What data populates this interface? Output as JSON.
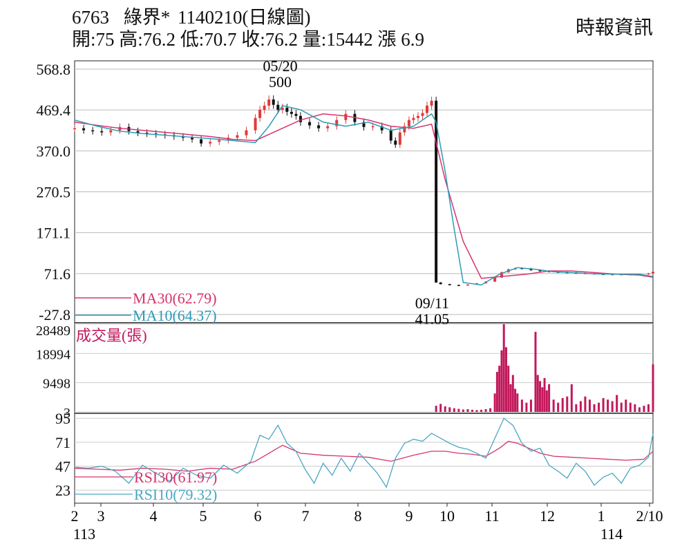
{
  "header": {
    "code": "6763",
    "name": "綠界*",
    "date": "1140210",
    "chart_kind": "(日線圖)",
    "quote": "開:75 高:76.2 低:70.7 收:76.2 量:15442 漲 6.9",
    "source": "時報資訊"
  },
  "chart_data": [
    {
      "type": "line",
      "panel": "price",
      "y_ticks": [
        "568.8",
        "469.4",
        "370.0",
        "270.5",
        "171.1",
        "71.6",
        "-27.8"
      ],
      "ylim": [
        -27.8,
        568.8
      ],
      "grid": true,
      "annotations": [
        {
          "label_top": "05/20",
          "label_bottom": "500",
          "x": 5.55,
          "y": 500
        },
        {
          "label_top": "09/11",
          "label_bottom": "41.05",
          "x": 9.05,
          "y": 41.05
        }
      ],
      "candles_x": [
        1.0,
        1.2,
        1.4,
        1.6,
        1.8,
        2.0,
        2.2,
        2.4,
        2.6,
        2.8,
        3.0,
        3.2,
        3.4,
        3.6,
        3.8,
        4.0,
        4.2,
        4.4,
        4.6,
        4.8,
        5.0,
        5.1,
        5.2,
        5.3,
        5.4,
        5.5,
        5.6,
        5.7,
        5.8,
        5.9,
        6.0,
        6.2,
        6.4,
        6.6,
        6.8,
        7.0,
        7.2,
        7.4,
        7.6,
        7.8,
        8.0,
        8.1,
        8.2,
        8.3,
        8.4,
        8.5,
        8.6,
        8.7,
        8.8,
        8.9,
        9.0,
        9.1,
        9.3,
        9.5,
        9.7,
        9.9,
        10.1,
        10.3,
        10.45,
        10.6,
        10.75,
        10.9,
        11.1,
        11.3,
        11.5,
        11.7,
        11.9,
        12.1,
        12.3,
        12.5,
        12.7,
        12.9,
        13.1,
        13.3,
        13.5,
        13.7,
        13.8
      ],
      "close": [
        425,
        420,
        418,
        415,
        420,
        428,
        418,
        414,
        412,
        410,
        408,
        405,
        402,
        398,
        388,
        392,
        396,
        402,
        408,
        420,
        450,
        470,
        480,
        495,
        482,
        470,
        475,
        465,
        460,
        455,
        440,
        432,
        425,
        430,
        445,
        460,
        440,
        428,
        430,
        420,
        395,
        385,
        415,
        430,
        445,
        450,
        455,
        462,
        480,
        492,
        50,
        46,
        44,
        43,
        45,
        48,
        52,
        62,
        75,
        82,
        85,
        84,
        80,
        78,
        76,
        75,
        74,
        73,
        72,
        71,
        70,
        70,
        70,
        70,
        70,
        72,
        76.2
      ],
      "series": [
        {
          "name": "MA30(62.79)",
          "color": "#d6336c",
          "x": [
            1.0,
            1.5,
            2.0,
            2.5,
            3.0,
            3.5,
            4.0,
            4.5,
            5.0,
            5.5,
            6.0,
            6.5,
            7.0,
            7.5,
            8.0,
            8.5,
            8.9,
            9.2,
            9.6,
            10.0,
            10.5,
            11.0,
            11.5,
            12.0,
            12.5,
            13.0,
            13.5,
            13.8
          ],
          "values": [
            440,
            432,
            425,
            420,
            415,
            410,
            405,
            398,
            395,
            420,
            445,
            460,
            455,
            445,
            430,
            425,
            435,
            300,
            150,
            60,
            65,
            70,
            78,
            78,
            74,
            70,
            68,
            62.79
          ]
        },
        {
          "name": "MA10(64.37)",
          "color": "#2b9bb5",
          "x": [
            1.0,
            1.5,
            2.0,
            2.5,
            3.0,
            3.5,
            4.0,
            4.5,
            5.0,
            5.3,
            5.6,
            6.0,
            6.5,
            7.0,
            7.5,
            8.0,
            8.5,
            8.9,
            9.0,
            9.2,
            9.4,
            9.6,
            10.0,
            10.4,
            10.8,
            11.2,
            11.6,
            12.0,
            12.5,
            13.0,
            13.5,
            13.8
          ],
          "values": [
            445,
            430,
            418,
            412,
            408,
            404,
            400,
            395,
            390,
            430,
            480,
            470,
            440,
            430,
            440,
            420,
            430,
            460,
            440,
            320,
            180,
            50,
            44,
            70,
            86,
            82,
            76,
            74,
            71,
            70,
            70,
            64.37
          ]
        }
      ]
    },
    {
      "type": "bar",
      "panel": "volume",
      "label": "成交量(張)",
      "y_ticks": [
        "28489",
        "18994",
        "9498",
        "3"
      ],
      "ylim": [
        3,
        28489
      ],
      "x": [
        9.0,
        9.1,
        9.2,
        9.3,
        9.4,
        9.5,
        9.6,
        9.7,
        9.8,
        9.9,
        10.0,
        10.1,
        10.2,
        10.3,
        10.35,
        10.4,
        10.45,
        10.5,
        10.55,
        10.6,
        10.65,
        10.7,
        10.75,
        10.8,
        10.9,
        11.0,
        11.1,
        11.2,
        11.25,
        11.3,
        11.35,
        11.4,
        11.45,
        11.5,
        11.6,
        11.7,
        11.8,
        11.9,
        12.0,
        12.1,
        12.2,
        12.3,
        12.4,
        12.5,
        12.6,
        12.7,
        12.8,
        12.9,
        13.0,
        13.1,
        13.2,
        13.3,
        13.4,
        13.5,
        13.6,
        13.7,
        13.8
      ],
      "values": [
        2000,
        2600,
        1800,
        1500,
        1200,
        1000,
        800,
        900,
        700,
        600,
        700,
        900,
        1200,
        6000,
        13000,
        15000,
        20000,
        28489,
        21000,
        15000,
        9000,
        12000,
        7500,
        6000,
        4000,
        3000,
        4000,
        26000,
        12000,
        10000,
        8000,
        11000,
        7000,
        9000,
        4000,
        3000,
        4500,
        5000,
        9000,
        2500,
        3500,
        5000,
        4000,
        2500,
        3000,
        4500,
        4000,
        3500,
        5500,
        3000,
        4000,
        3000,
        2500,
        1500,
        2000,
        2500,
        15442
      ],
      "grid": true
    },
    {
      "type": "line",
      "panel": "rsi",
      "y_ticks": [
        "95",
        "71",
        "47",
        "23"
      ],
      "ylim": [
        10,
        100
      ],
      "series": [
        {
          "name": "RSI30(61.97)",
          "color": "#d6336c",
          "x": [
            1.0,
            1.5,
            2.0,
            2.5,
            3.0,
            3.5,
            4.0,
            4.5,
            5.0,
            5.3,
            5.6,
            6.0,
            6.5,
            7.0,
            7.5,
            8.0,
            8.5,
            8.9,
            9.2,
            9.5,
            9.8,
            10.1,
            10.4,
            10.6,
            10.8,
            11.0,
            11.3,
            11.6,
            12.0,
            12.4,
            12.8,
            13.2,
            13.6,
            13.8
          ],
          "values": [
            45,
            44,
            43,
            45,
            44,
            42,
            45,
            44,
            52,
            60,
            68,
            60,
            58,
            57,
            56,
            52,
            58,
            62,
            62,
            60,
            59,
            57,
            65,
            72,
            70,
            66,
            60,
            57,
            56,
            55,
            54,
            53,
            54,
            61.97
          ]
        },
        {
          "name": "RSI10(79.32)",
          "color": "#4aa6c2",
          "x": [
            1.0,
            1.3,
            1.6,
            1.9,
            2.2,
            2.5,
            2.8,
            3.1,
            3.4,
            3.7,
            4.0,
            4.3,
            4.6,
            4.9,
            5.1,
            5.3,
            5.5,
            5.7,
            5.9,
            6.1,
            6.3,
            6.5,
            6.7,
            6.9,
            7.1,
            7.3,
            7.5,
            7.7,
            7.9,
            8.1,
            8.3,
            8.5,
            8.7,
            8.9,
            9.1,
            9.3,
            9.5,
            9.7,
            9.9,
            10.1,
            10.3,
            10.5,
            10.7,
            10.9,
            11.1,
            11.3,
            11.5,
            11.7,
            11.9,
            12.1,
            12.3,
            12.5,
            12.7,
            12.9,
            13.1,
            13.3,
            13.5,
            13.7,
            13.8
          ],
          "values": [
            46,
            45,
            47,
            42,
            30,
            48,
            40,
            32,
            45,
            38,
            35,
            48,
            40,
            52,
            78,
            74,
            88,
            70,
            62,
            44,
            30,
            50,
            38,
            55,
            42,
            60,
            50,
            40,
            26,
            55,
            70,
            74,
            72,
            80,
            75,
            70,
            66,
            64,
            60,
            55,
            75,
            95,
            88,
            70,
            62,
            65,
            48,
            42,
            35,
            50,
            42,
            28,
            36,
            40,
            30,
            45,
            48,
            56,
            79.32
          ]
        }
      ]
    }
  ],
  "x_axis": {
    "ticks": [
      {
        "label": "2",
        "x": 1.0
      },
      {
        "label": "3",
        "x": 1.5
      },
      {
        "label": "4",
        "x": 2.5
      },
      {
        "label": "5",
        "x": 3.5
      },
      {
        "label": "6",
        "x": 4.5
      },
      {
        "label": "7",
        "x": 5.5
      },
      {
        "label": "8",
        "x": 6.5
      },
      {
        "label": "9",
        "x": 7.5
      },
      {
        "label": "10",
        "x": 8.5
      },
      {
        "label": "11",
        "x": 9.5
      },
      {
        "label": "12",
        "x": 10.5
      },
      {
        "label": "1",
        "x": 11.5
      },
      {
        "label": "2/10",
        "x": 12.5
      }
    ],
    "year_labels": [
      {
        "label": "113",
        "x": 1.0
      },
      {
        "label": "114",
        "x": 11.5
      }
    ]
  }
}
